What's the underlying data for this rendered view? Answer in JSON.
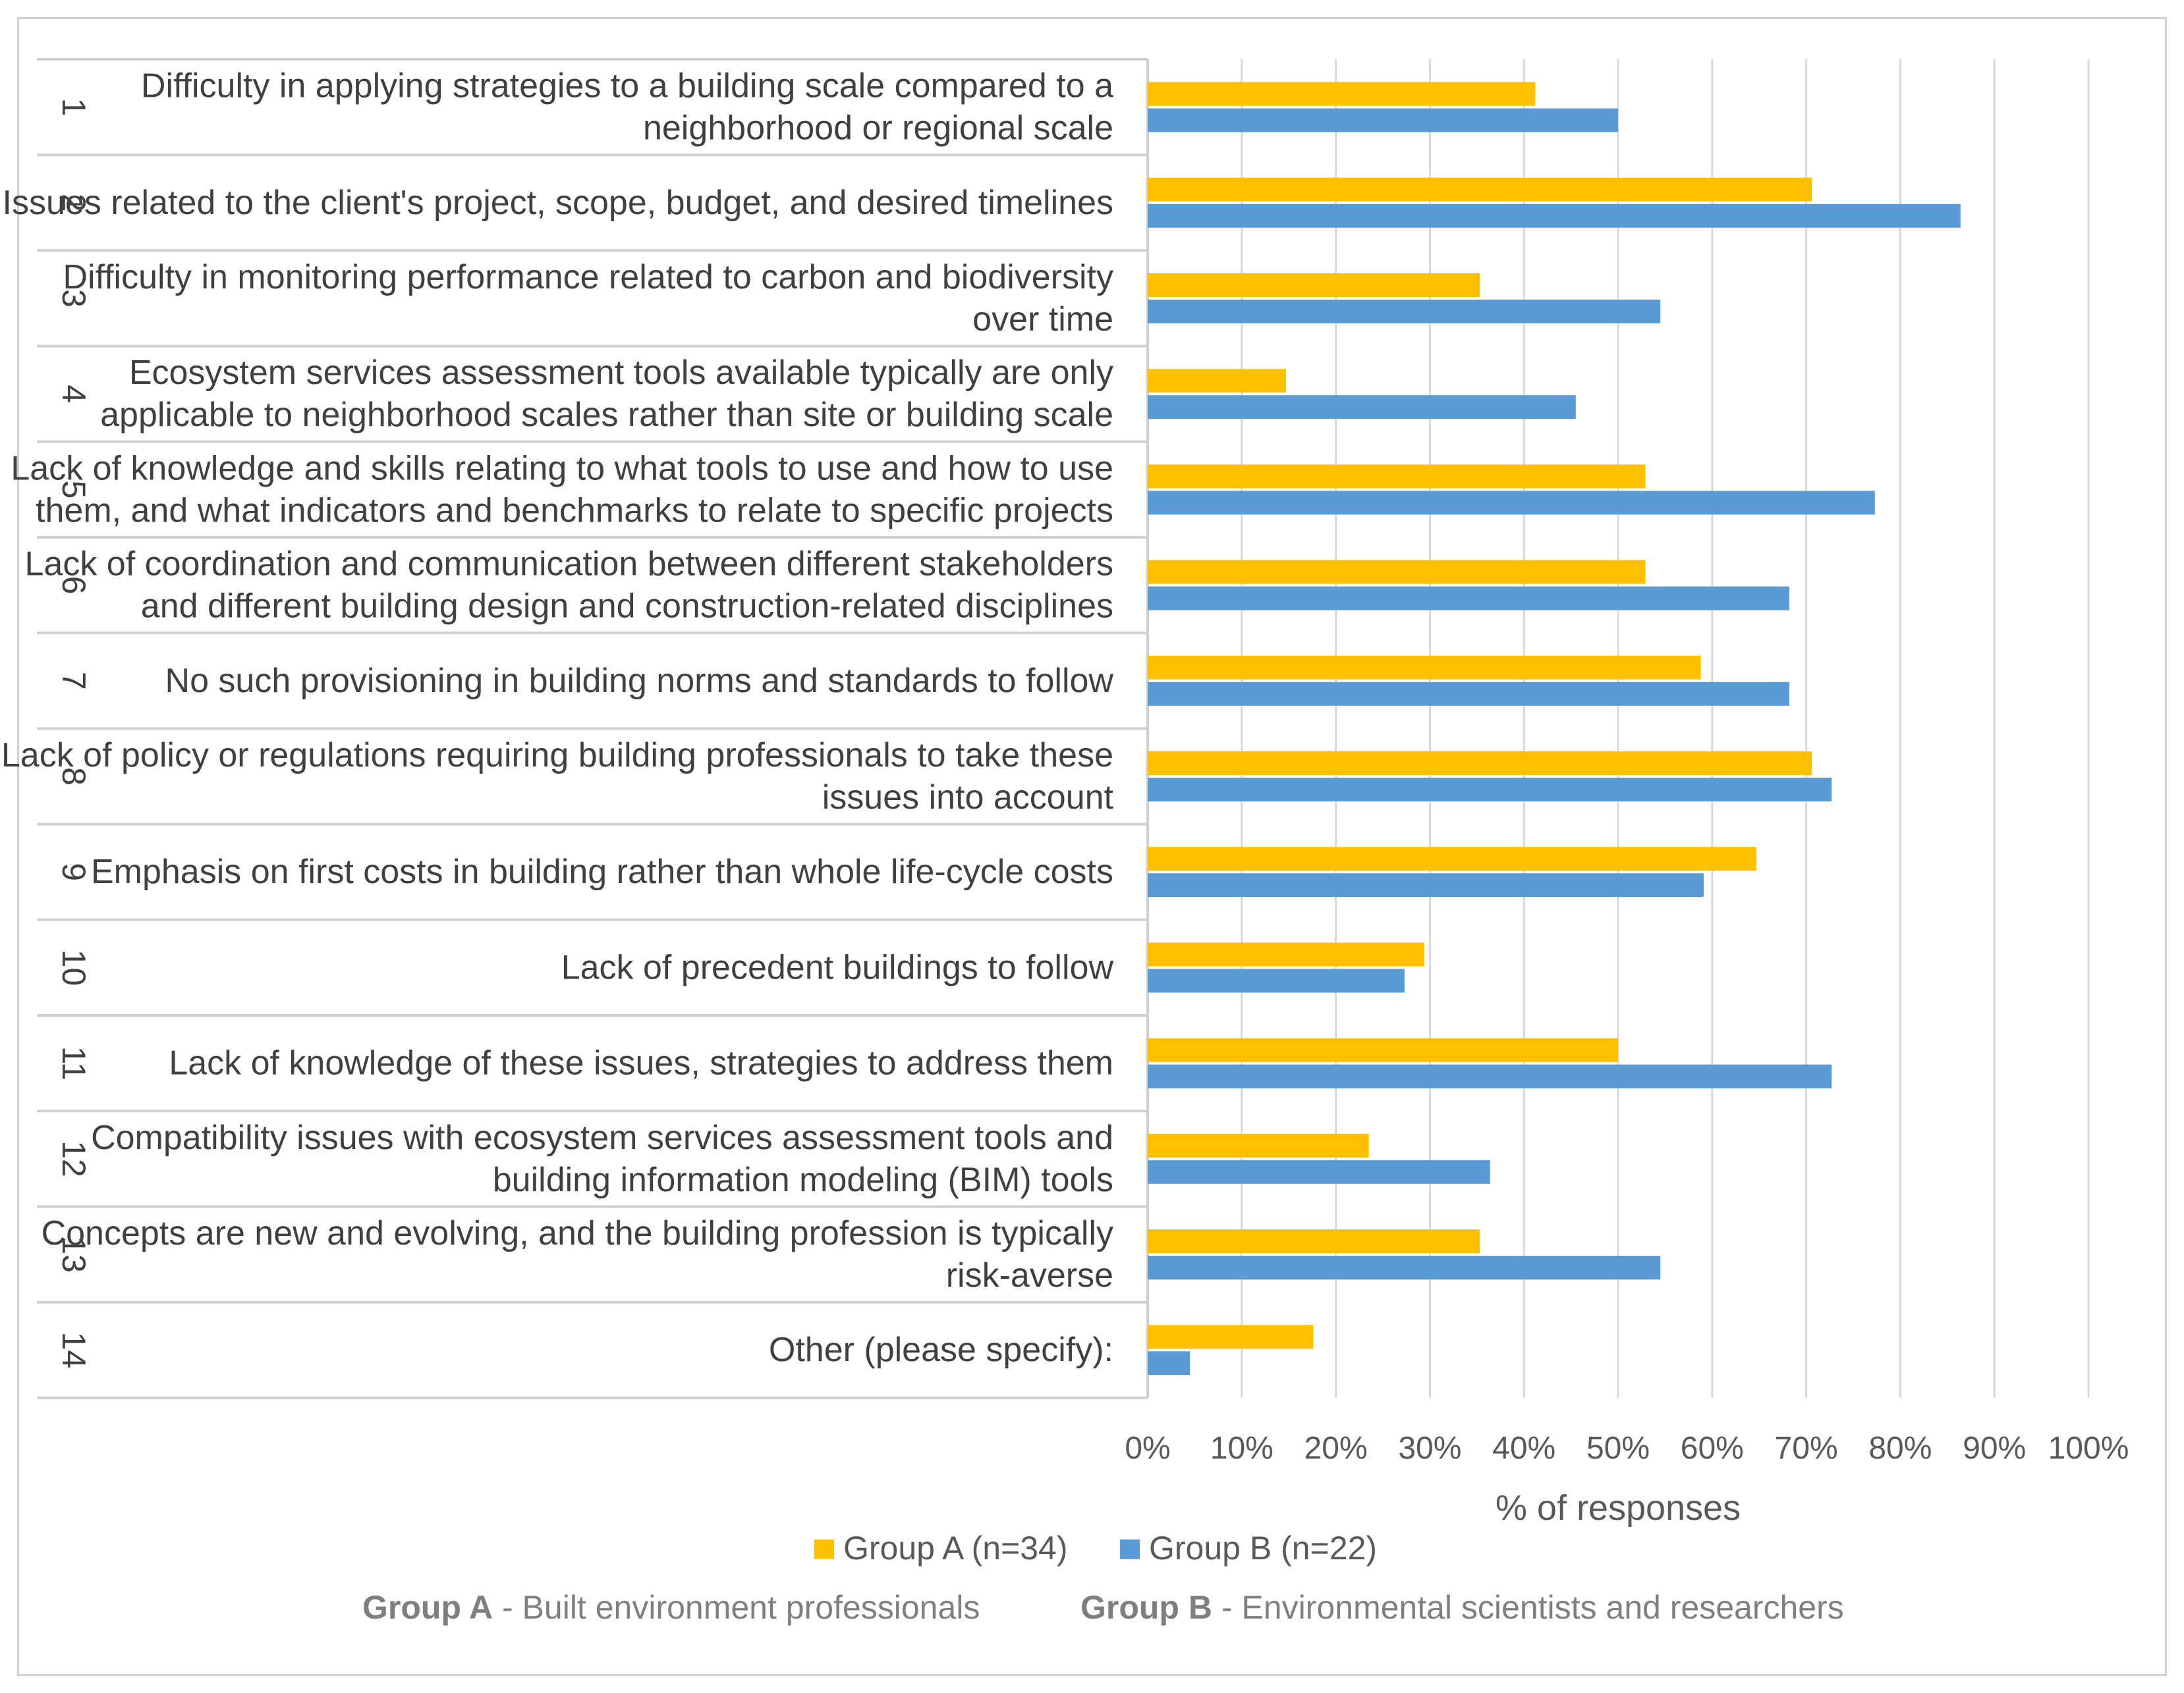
{
  "chart_data": {
    "type": "bar",
    "orientation": "horizontal",
    "xlabel": "% of responses",
    "xlim": [
      0,
      100
    ],
    "xticks": [
      "0%",
      "10%",
      "20%",
      "30%",
      "40%",
      "50%",
      "60%",
      "70%",
      "80%",
      "90%",
      "100%"
    ],
    "grid": true,
    "legend_position": "bottom",
    "categories": [
      {
        "num": "1",
        "lines": [
          "Difficulty in applying strategies to a building scale compared to a",
          "neighborhood or regional scale"
        ]
      },
      {
        "num": "2",
        "lines": [
          "Issues related to the client's project, scope, budget, and desired timelines"
        ]
      },
      {
        "num": "3",
        "lines": [
          "Difficulty in monitoring performance related to carbon and biodiversity",
          "over time"
        ]
      },
      {
        "num": "4",
        "lines": [
          "Ecosystem services assessment tools available typically are only",
          "applicable to neighborhood scales rather than site or building scale"
        ]
      },
      {
        "num": "5",
        "lines": [
          "Lack of knowledge and skills relating to what tools to use and how to use",
          "them, and what indicators and benchmarks to relate to specific projects"
        ]
      },
      {
        "num": "6",
        "lines": [
          "Lack of coordination and communication between different stakeholders",
          "and different building design and construction-related disciplines"
        ]
      },
      {
        "num": "7",
        "lines": [
          "No such provisioning in building norms and standards to follow"
        ]
      },
      {
        "num": "8",
        "lines": [
          "Lack of policy or regulations requiring building professionals to take these",
          "issues into account"
        ]
      },
      {
        "num": "9",
        "lines": [
          "Emphasis on first costs in building rather than whole life-cycle costs"
        ]
      },
      {
        "num": "10",
        "lines": [
          "Lack of precedent buildings to follow"
        ]
      },
      {
        "num": "11",
        "lines": [
          "Lack of knowledge of these issues, strategies to address them"
        ]
      },
      {
        "num": "12",
        "lines": [
          "Compatibility issues with ecosystem services assessment tools and",
          "building information modeling (BIM) tools"
        ]
      },
      {
        "num": "13",
        "lines": [
          "Concepts are new and evolving, and the building profession is typically",
          "risk-averse"
        ]
      },
      {
        "num": "14",
        "lines": [
          "Other (please specify):"
        ]
      }
    ],
    "series": [
      {
        "name": "Group A (n=34)",
        "color": "#FFC000",
        "values": [
          41.2,
          70.6,
          35.3,
          14.7,
          52.9,
          52.9,
          58.8,
          70.6,
          64.7,
          29.4,
          50.0,
          23.5,
          35.3,
          17.6
        ]
      },
      {
        "name": "Group B (n=22)",
        "color": "#5B9BD5",
        "values": [
          50.0,
          86.4,
          54.5,
          45.5,
          77.3,
          68.2,
          68.2,
          72.7,
          59.1,
          27.3,
          72.7,
          36.4,
          54.5,
          4.5
        ]
      }
    ],
    "footnote": [
      {
        "bold": "Group A",
        "text": " - Built environment professionals"
      },
      {
        "bold": "Group B",
        "text": " - Environmental scientists and researchers"
      }
    ]
  },
  "colors": {
    "grid": "#d9d9d9",
    "row_line": "#d0d0d0",
    "label": "#404040",
    "axis_text": "#595959"
  }
}
